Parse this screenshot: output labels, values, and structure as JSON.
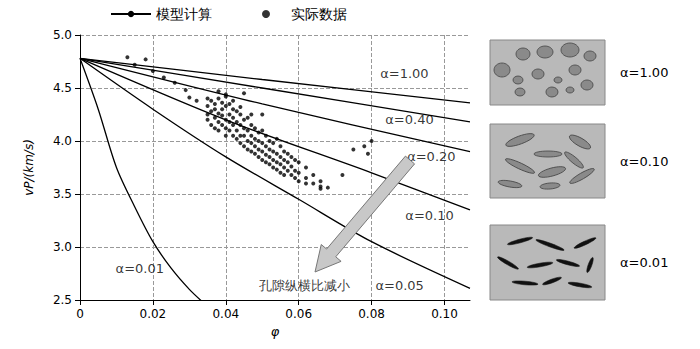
{
  "chart_data": {
    "type": "scatter",
    "x_label": "φ",
    "y_label": "vP/(km/s)",
    "xlim": [
      0,
      0.107
    ],
    "xticks": [
      0,
      0.02,
      0.04,
      0.06,
      0.08,
      {
        "value": 0.1,
        "label": "0.10"
      }
    ],
    "ylim": [
      2.5,
      5.0
    ],
    "yticks": [
      2.5,
      {
        "value": 3.0,
        "label": "3.0"
      },
      3.5,
      {
        "value": 4.0,
        "label": "4.0"
      },
      4.5,
      {
        "value": 5.0,
        "label": "5.0"
      }
    ],
    "grid": true,
    "legend": "top",
    "series": [
      {
        "name": "模型计算",
        "type": "line",
        "color": "#000000",
        "line_style": "solid",
        "curves": [
          {
            "label": "α=1.00",
            "label_x": 0.089,
            "label_y": 4.64,
            "x": [
              0,
              0.05,
              0.107
            ],
            "values": [
              4.78,
              4.58,
              4.36
            ]
          },
          {
            "label": "α=0.40",
            "label_x": 0.0904,
            "label_y": 4.2,
            "x": [
              0,
              0.05,
              0.107
            ],
            "values": [
              4.78,
              4.5,
              4.18
            ]
          },
          {
            "label": "α=0.20",
            "label_x": 0.0964,
            "label_y": 3.85,
            "x": [
              0,
              0.05,
              0.107
            ],
            "values": [
              4.78,
              4.35,
              3.9
            ]
          },
          {
            "label": "α=0.10",
            "label_x": 0.0959,
            "label_y": 3.3,
            "x": [
              0,
              0.04,
              0.08,
              0.107
            ],
            "values": [
              4.78,
              4.2,
              3.7,
              3.35
            ]
          },
          {
            "label": "α=0.05",
            "label_x": 0.0877,
            "label_y": 2.64,
            "x": [
              0,
              0.02,
              0.04,
              0.06,
              0.08,
              0.107
            ],
            "values": [
              4.78,
              4.3,
              3.85,
              3.45,
              3.05,
              2.61
            ]
          },
          {
            "label": "α=0.01",
            "label_x": 0.0164,
            "label_y": 2.8,
            "x": [
              0,
              0.005,
              0.01,
              0.015,
              0.02,
              0.025,
              0.03,
              0.034
            ],
            "values": [
              4.78,
              4.3,
              3.75,
              3.38,
              3.05,
              2.8,
              2.6,
              2.47
            ]
          }
        ]
      },
      {
        "name": "实际数据",
        "type": "scatter",
        "color": "#000000",
        "marker": "circle",
        "points": [
          [
            0.013,
            4.79
          ],
          [
            0.015,
            4.72
          ],
          [
            0.018,
            4.77
          ],
          [
            0.02,
            4.66
          ],
          [
            0.023,
            4.6
          ],
          [
            0.026,
            4.55
          ],
          [
            0.029,
            4.48
          ],
          [
            0.03,
            4.41
          ],
          [
            0.032,
            4.38
          ],
          [
            0.075,
            3.92
          ],
          [
            0.078,
            3.95
          ],
          [
            0.08,
            4.0
          ],
          [
            0.079,
            3.88
          ],
          [
            0.072,
            3.68
          ],
          [
            0.066,
            3.55
          ],
          [
            0.068,
            3.56
          ],
          [
            0.05,
            4.25
          ],
          [
            0.045,
            4.45
          ],
          [
            0.038,
            4.47
          ],
          [
            0.04,
            4.44
          ],
          [
            0.035,
            4.4
          ],
          [
            0.035,
            4.33
          ],
          [
            0.035,
            4.25
          ],
          [
            0.035,
            4.2
          ],
          [
            0.036,
            4.38
          ],
          [
            0.036,
            4.28
          ],
          [
            0.036,
            4.15
          ],
          [
            0.037,
            4.35
          ],
          [
            0.037,
            4.22
          ],
          [
            0.037,
            4.3
          ],
          [
            0.037,
            4.12
          ],
          [
            0.038,
            4.4
          ],
          [
            0.038,
            4.26
          ],
          [
            0.038,
            4.18
          ],
          [
            0.038,
            4.1
          ],
          [
            0.039,
            4.36
          ],
          [
            0.039,
            4.24
          ],
          [
            0.039,
            4.3
          ],
          [
            0.039,
            4.15
          ],
          [
            0.04,
            4.42
          ],
          [
            0.04,
            4.33
          ],
          [
            0.04,
            4.2
          ],
          [
            0.04,
            4.12
          ],
          [
            0.04,
            4.05
          ],
          [
            0.041,
            4.35
          ],
          [
            0.041,
            4.25
          ],
          [
            0.041,
            4.18
          ],
          [
            0.041,
            4.1
          ],
          [
            0.042,
            4.3
          ],
          [
            0.042,
            4.22
          ],
          [
            0.042,
            4.15
          ],
          [
            0.042,
            4.05
          ],
          [
            0.042,
            4.38
          ],
          [
            0.043,
            4.28
          ],
          [
            0.043,
            4.18
          ],
          [
            0.043,
            4.1
          ],
          [
            0.043,
            4.02
          ],
          [
            0.044,
            4.25
          ],
          [
            0.044,
            4.15
          ],
          [
            0.044,
            4.05
          ],
          [
            0.044,
            3.98
          ],
          [
            0.044,
            4.32
          ],
          [
            0.045,
            4.2
          ],
          [
            0.045,
            4.12
          ],
          [
            0.045,
            4.05
          ],
          [
            0.045,
            3.95
          ],
          [
            0.046,
            4.22
          ],
          [
            0.046,
            4.1
          ],
          [
            0.046,
            4.0
          ],
          [
            0.046,
            3.92
          ],
          [
            0.047,
            4.15
          ],
          [
            0.047,
            4.05
          ],
          [
            0.047,
            3.98
          ],
          [
            0.047,
            3.9
          ],
          [
            0.047,
            4.25
          ],
          [
            0.048,
            4.12
          ],
          [
            0.048,
            4.02
          ],
          [
            0.048,
            3.95
          ],
          [
            0.048,
            3.88
          ],
          [
            0.049,
            4.08
          ],
          [
            0.049,
            4.0
          ],
          [
            0.049,
            3.92
          ],
          [
            0.049,
            3.85
          ],
          [
            0.05,
            4.1
          ],
          [
            0.05,
            3.98
          ],
          [
            0.05,
            3.9
          ],
          [
            0.05,
            3.82
          ],
          [
            0.051,
            4.05
          ],
          [
            0.051,
            3.95
          ],
          [
            0.051,
            3.87
          ],
          [
            0.051,
            3.8
          ],
          [
            0.052,
            4.0
          ],
          [
            0.052,
            3.92
          ],
          [
            0.052,
            3.85
          ],
          [
            0.052,
            3.78
          ],
          [
            0.053,
            3.98
          ],
          [
            0.053,
            3.9
          ],
          [
            0.053,
            3.82
          ],
          [
            0.053,
            3.75
          ],
          [
            0.054,
            4.02
          ],
          [
            0.054,
            3.88
          ],
          [
            0.054,
            3.8
          ],
          [
            0.054,
            3.73
          ],
          [
            0.055,
            3.95
          ],
          [
            0.055,
            3.85
          ],
          [
            0.055,
            3.78
          ],
          [
            0.055,
            3.7
          ],
          [
            0.056,
            3.9
          ],
          [
            0.056,
            3.82
          ],
          [
            0.056,
            3.75
          ],
          [
            0.056,
            3.68
          ],
          [
            0.057,
            3.88
          ],
          [
            0.057,
            3.8
          ],
          [
            0.057,
            3.72
          ],
          [
            0.058,
            3.85
          ],
          [
            0.058,
            3.76
          ],
          [
            0.058,
            3.68
          ],
          [
            0.059,
            3.82
          ],
          [
            0.059,
            3.72
          ],
          [
            0.059,
            3.65
          ],
          [
            0.06,
            3.8
          ],
          [
            0.06,
            3.7
          ],
          [
            0.06,
            3.62
          ],
          [
            0.062,
            3.75
          ],
          [
            0.062,
            3.65
          ],
          [
            0.062,
            3.6
          ],
          [
            0.064,
            3.68
          ],
          [
            0.064,
            3.6
          ],
          [
            0.066,
            3.62
          ],
          [
            0.066,
            3.57
          ]
        ]
      }
    ],
    "annotations": [
      {
        "text": "孔隙纵横比减小",
        "x": 0.0616,
        "y": 2.64
      }
    ],
    "panels": [
      {
        "label": "α=1.00",
        "shape": "round"
      },
      {
        "label": "α=0.10",
        "shape": "elongated"
      },
      {
        "label": "α=0.01",
        "shape": "crack"
      }
    ]
  }
}
